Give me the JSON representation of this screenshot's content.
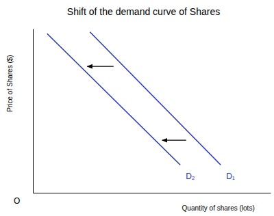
{
  "chart_data": {
    "type": "line",
    "title": "Shift of the demand curve of Shares",
    "x_label": "Quantity of shares (lots)",
    "y_label": "Price of Shares ($)",
    "annotations": [
      "O"
    ],
    "series": [
      {
        "name": "D₁",
        "color": "#2233cc",
        "x": [
          24,
          79
        ],
        "values": [
          98,
          17
        ]
      },
      {
        "name": "D₂",
        "color": "#2233cc",
        "x": [
          6,
          62
        ],
        "values": [
          97,
          17
        ]
      }
    ],
    "xlim": [
      0,
      100
    ],
    "ylim": [
      0,
      100
    ],
    "xticks": [],
    "yticks": [],
    "grid": false,
    "tick_labels": false
  }
}
